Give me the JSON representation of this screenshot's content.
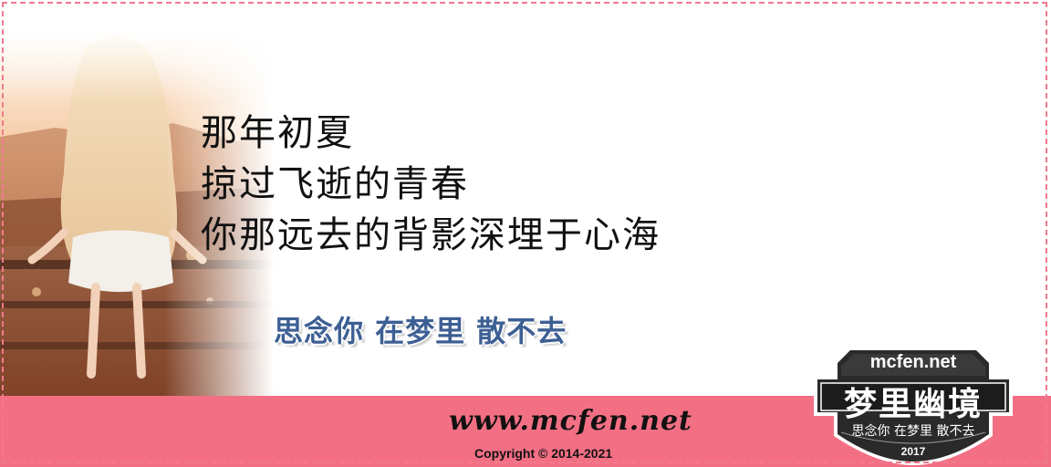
{
  "poem": {
    "line1": "那年初夏",
    "line2": "掠过飞逝的青春",
    "line3": "你那远去的背影深埋于心海"
  },
  "slogan": "思念你 在梦里 散不去",
  "footer": {
    "url": "www.mcfen.net",
    "copyright": "Copyright © 2014-2021"
  },
  "badge": {
    "domain": "mcfen.net",
    "title": "梦里幽境",
    "subtitle": "思念你 在梦里 散不去",
    "year": "2017"
  },
  "colors": {
    "footer_bg": "#f36f84",
    "dashed_border": "#f07a8e",
    "slogan": "#3d5f94",
    "badge": "#2a2a2a"
  }
}
